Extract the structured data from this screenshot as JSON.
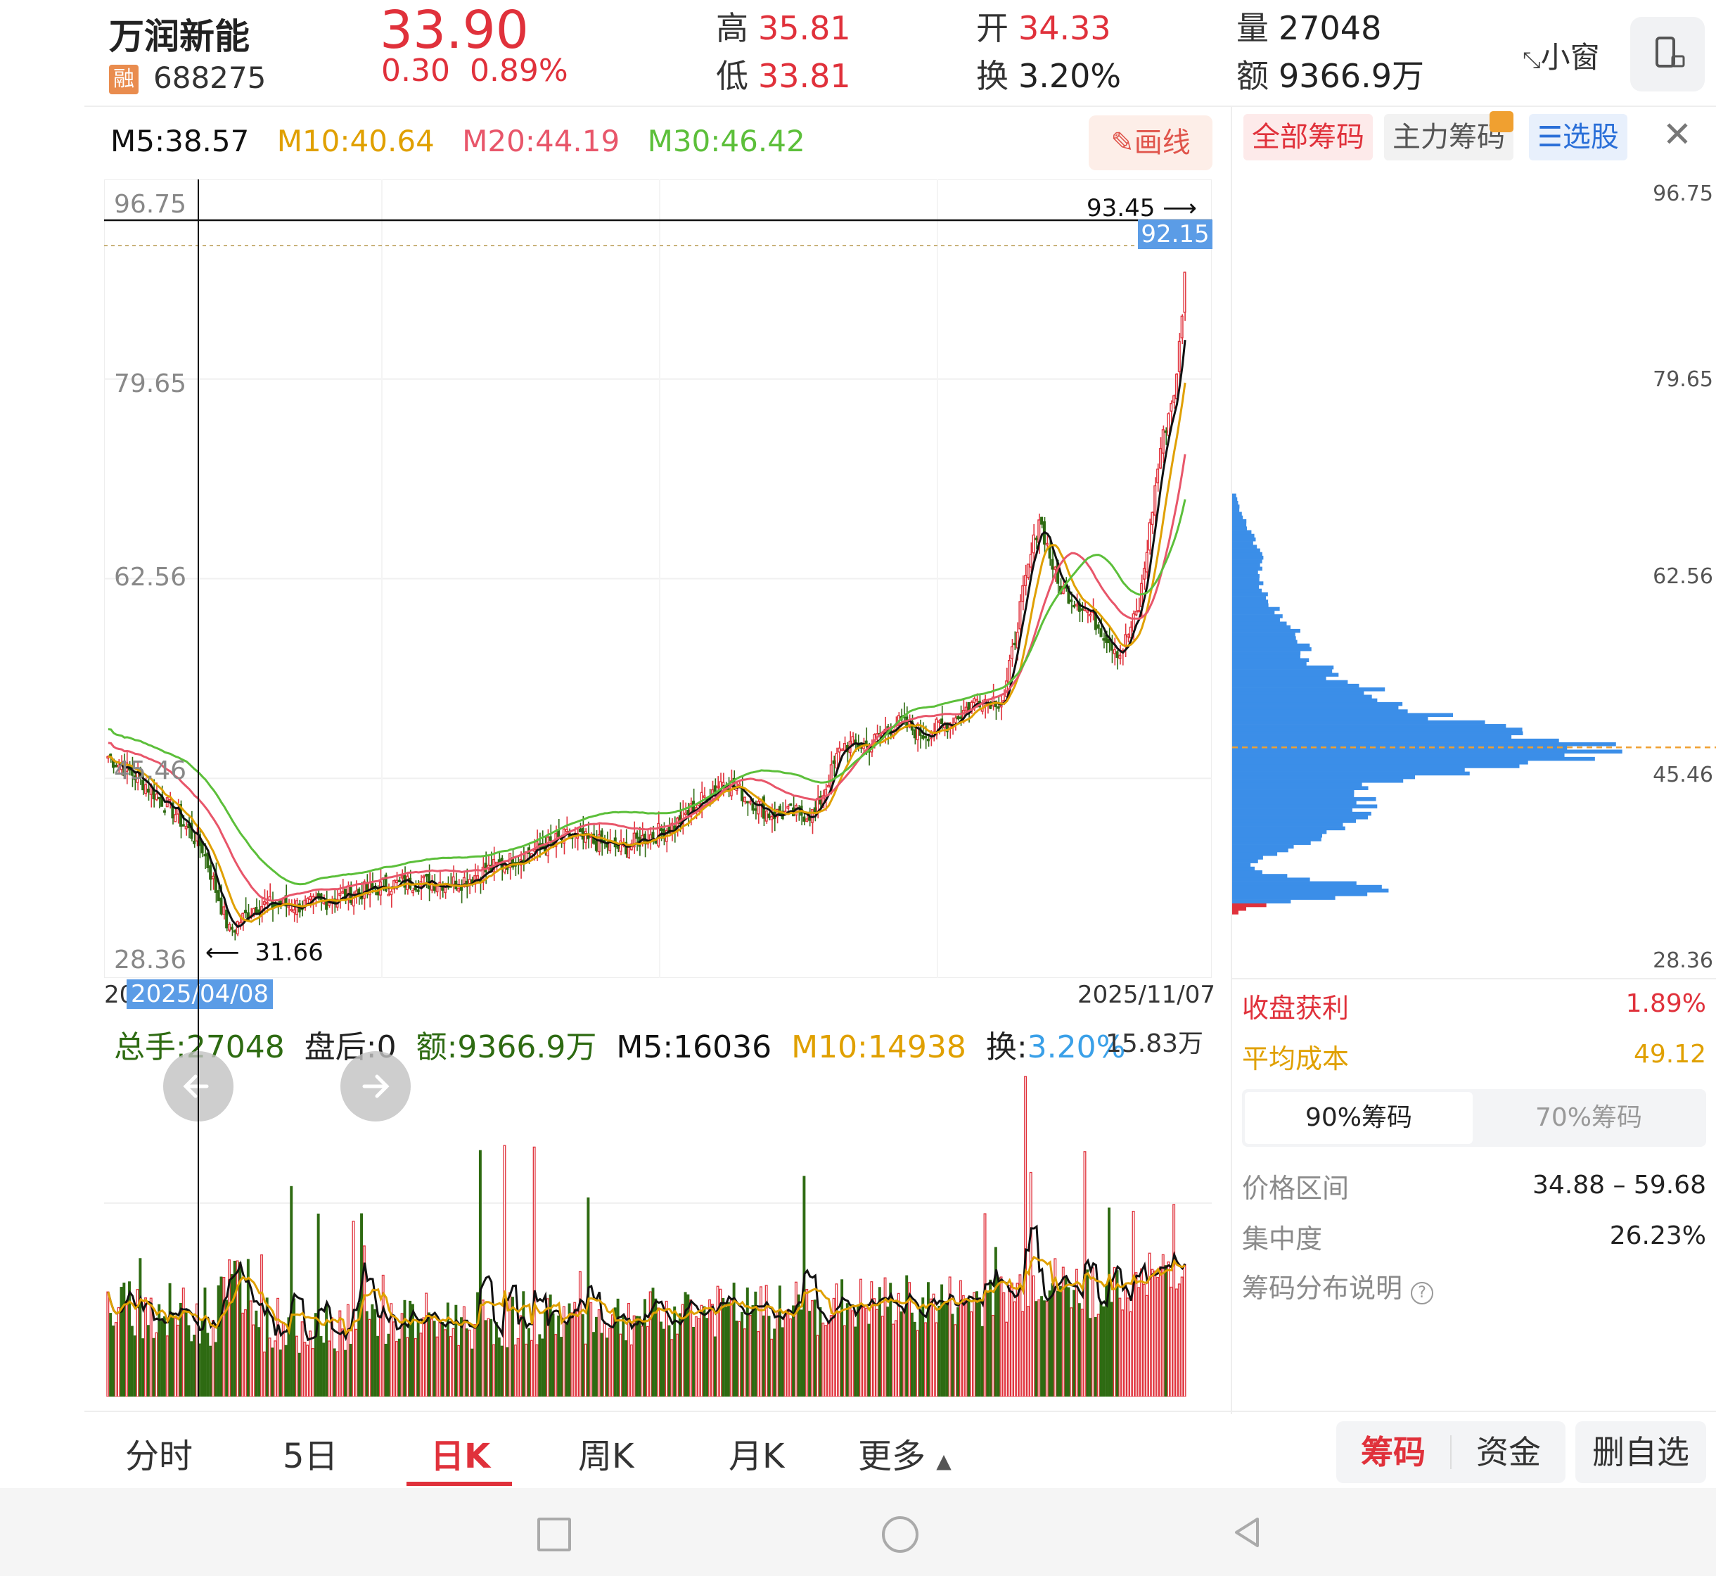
{
  "header": {
    "stock_name": "万润新能",
    "margin_badge": "融",
    "code": "688275",
    "price": "33.90",
    "change": "0.30",
    "change_pct": "0.89%",
    "high_label": "高",
    "high": "35.81",
    "low_label": "低",
    "low": "33.81",
    "open_label": "开",
    "open": "34.33",
    "turnover_label": "换",
    "turnover": "3.20%",
    "volume_label": "量",
    "volume": "27048",
    "amount_label": "额",
    "amount": "9366.9万",
    "small_window": "小窗"
  },
  "ma": {
    "m5": "M5:38.57",
    "m10": "M10:40.64",
    "m20": "M20:44.19",
    "m30": "M30:46.42",
    "draw_button": "画线"
  },
  "kline": {
    "y_ticks": [
      "96.75",
      "79.65",
      "62.56",
      "45.46",
      "28.36"
    ],
    "max_marker": "93.45",
    "crosshair_price": "92.15",
    "min_marker": "31.66",
    "date_start_prefix": "20",
    "crosshair_date": "2025/04/08",
    "date_end": "2025/11/07"
  },
  "volume": {
    "total_hands": "总手:27048",
    "after_hours": "盘后:0",
    "amount": "额:9366.9万",
    "m5": "M5:16036",
    "m10": "M10:14938",
    "turnover_label": "换:",
    "turnover": "3.20%",
    "max_label": "15.83万"
  },
  "chips": {
    "tabs": [
      "全部筹码",
      "主力筹码",
      "选股"
    ],
    "y_ticks": [
      "96.75",
      "79.65",
      "62.56",
      "45.46",
      "28.36"
    ],
    "profit_label": "收盘获利",
    "profit_value": "1.89%",
    "avg_cost_label": "平均成本",
    "avg_cost_value": "49.12",
    "seg_90": "90%筹码",
    "seg_70": "70%筹码",
    "range_label": "价格区间",
    "range_value": "34.88 – 59.68",
    "concentration_label": "集中度",
    "concentration_value": "26.23%",
    "explain_label": "筹码分布说明"
  },
  "bottom_tabs": [
    "分时",
    "5日",
    "日K",
    "周K",
    "月K",
    "更多"
  ],
  "bottom_actions": {
    "chips": "筹码",
    "funds": "资金",
    "remove": "删自选"
  },
  "colors": {
    "up": "#e0313b",
    "down": "#2e6b12",
    "m10": "#e0a000",
    "m20": "#e8566a",
    "m30": "#5cbf3a",
    "chip_blue": "#3b8ee8"
  }
}
